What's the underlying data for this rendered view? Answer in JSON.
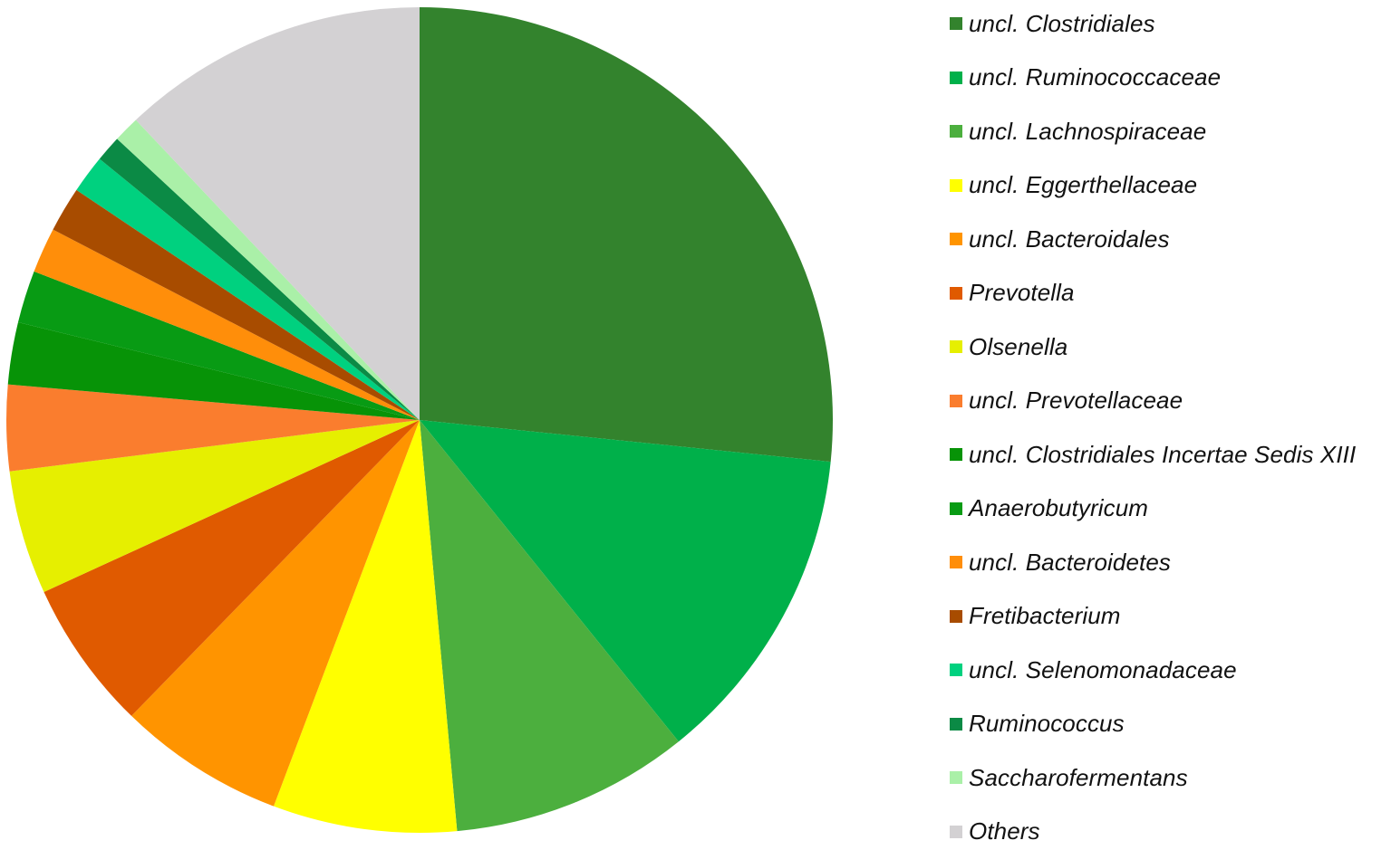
{
  "chart_data": {
    "type": "pie",
    "legend_position": "right",
    "start_angle": "top",
    "direction": "clockwise",
    "series": [
      {
        "label": "uncl. Clostridiales",
        "value": 28.5,
        "color": "#33832d"
      },
      {
        "label": "uncl. Ruminococcaceae",
        "value": 13.5,
        "color": "#00b04a"
      },
      {
        "label": "uncl. Lachnospiraceae",
        "value": 10.0,
        "color": "#4caf3e"
      },
      {
        "label": "uncl. Eggerthellaceae",
        "value": 7.7,
        "color": "#ffff00"
      },
      {
        "label": "uncl. Bacteroidales",
        "value": 7.0,
        "color": "#ff9400"
      },
      {
        "label": "Prevotella",
        "value": 6.3,
        "color": "#e05a00"
      },
      {
        "label": "Olsenella",
        "value": 5.2,
        "color": "#e6ef00"
      },
      {
        "label": "uncl. Prevotellaceae",
        "value": 3.6,
        "color": "#fa7d2e"
      },
      {
        "label": "uncl. Clostridiales Incertae Sedis XIII",
        "value": 2.6,
        "color": "#079307"
      },
      {
        "label": "Anaerobutyricum",
        "value": 2.2,
        "color": "#089b14"
      },
      {
        "label": "uncl. Bacteroidetes",
        "value": 1.9,
        "color": "#ff8e0a"
      },
      {
        "label": "Fretibacterium",
        "value": 1.9,
        "color": "#a84c00"
      },
      {
        "label": "uncl. Selenomonadaceae",
        "value": 1.6,
        "color": "#00d17f"
      },
      {
        "label": "Ruminococcus",
        "value": 1.1,
        "color": "#0b8a45"
      },
      {
        "label": "Saccharofermentans",
        "value": 1.1,
        "color": "#aaf0a8"
      },
      {
        "label": "Others",
        "value": 12.9,
        "color": "#d3d1d3"
      }
    ]
  }
}
